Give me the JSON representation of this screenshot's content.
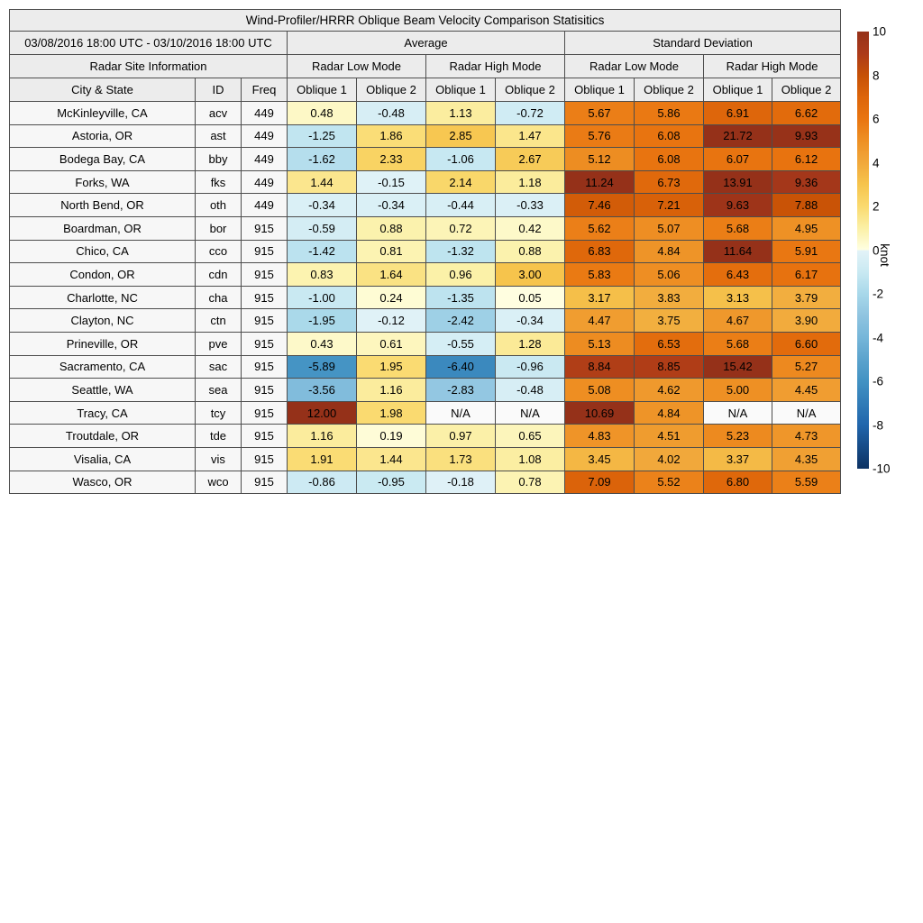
{
  "chart_data": {
    "type": "heatmap",
    "title": "Wind-Profiler/HRRR Oblique Beam Velocity Comparison Statisitics",
    "date_range": "03/08/2016 18:00 UTC - 03/10/2016 18:00 UTC",
    "site_info_header": "Radar Site Information",
    "stat_groups": [
      "Average",
      "Standard Deviation"
    ],
    "mode_headers": [
      "Radar Low Mode",
      "Radar High Mode",
      "Radar Low Mode",
      "Radar High Mode"
    ],
    "site_columns": [
      "City & State",
      "ID",
      "Freq"
    ],
    "oblique_headers": [
      "Oblique 1",
      "Oblique 2",
      "Oblique 1",
      "Oblique 2",
      "Oblique 1",
      "Oblique 2",
      "Oblique 1",
      "Oblique 2"
    ],
    "na_text": "N/A",
    "rows": [
      {
        "city": "McKinleyville, CA",
        "id": "acv",
        "freq": "449",
        "values": [
          0.48,
          -0.48,
          1.13,
          -0.72,
          5.67,
          5.86,
          6.91,
          6.62
        ]
      },
      {
        "city": "Astoria, OR",
        "id": "ast",
        "freq": "449",
        "values": [
          -1.25,
          1.86,
          2.85,
          1.47,
          5.76,
          6.08,
          21.72,
          9.93
        ]
      },
      {
        "city": "Bodega Bay, CA",
        "id": "bby",
        "freq": "449",
        "values": [
          -1.62,
          2.33,
          -1.06,
          2.67,
          5.12,
          6.08,
          6.07,
          6.12
        ]
      },
      {
        "city": "Forks, WA",
        "id": "fks",
        "freq": "449",
        "values": [
          1.44,
          -0.15,
          2.14,
          1.18,
          11.24,
          6.73,
          13.91,
          9.36
        ]
      },
      {
        "city": "North Bend, OR",
        "id": "oth",
        "freq": "449",
        "values": [
          -0.34,
          -0.34,
          -0.44,
          -0.33,
          7.46,
          7.21,
          9.63,
          7.88
        ]
      },
      {
        "city": "Boardman, OR",
        "id": "bor",
        "freq": "915",
        "values": [
          -0.59,
          0.88,
          0.72,
          0.42,
          5.62,
          5.07,
          5.68,
          4.95
        ]
      },
      {
        "city": "Chico, CA",
        "id": "cco",
        "freq": "915",
        "values": [
          -1.42,
          0.81,
          -1.32,
          0.88,
          6.83,
          4.84,
          11.64,
          5.91
        ]
      },
      {
        "city": "Condon, OR",
        "id": "cdn",
        "freq": "915",
        "values": [
          0.83,
          1.64,
          0.96,
          3.0,
          5.83,
          5.06,
          6.43,
          6.17
        ]
      },
      {
        "city": "Charlotte, NC",
        "id": "cha",
        "freq": "915",
        "values": [
          -1.0,
          0.24,
          -1.35,
          0.05,
          3.17,
          3.83,
          3.13,
          3.79
        ]
      },
      {
        "city": "Clayton, NC",
        "id": "ctn",
        "freq": "915",
        "values": [
          -1.95,
          -0.12,
          -2.42,
          -0.34,
          4.47,
          3.75,
          4.67,
          3.9
        ]
      },
      {
        "city": "Prineville, OR",
        "id": "pve",
        "freq": "915",
        "values": [
          0.43,
          0.61,
          -0.55,
          1.28,
          5.13,
          6.53,
          5.68,
          6.6
        ]
      },
      {
        "city": "Sacramento, CA",
        "id": "sac",
        "freq": "915",
        "values": [
          -5.89,
          1.95,
          -6.4,
          -0.96,
          8.84,
          8.85,
          15.42,
          5.27
        ]
      },
      {
        "city": "Seattle, WA",
        "id": "sea",
        "freq": "915",
        "values": [
          -3.56,
          1.16,
          -2.83,
          -0.48,
          5.08,
          4.62,
          5.0,
          4.45
        ]
      },
      {
        "city": "Tracy, CA",
        "id": "tcy",
        "freq": "915",
        "values": [
          12.0,
          1.98,
          "N/A",
          "N/A",
          10.69,
          4.84,
          "N/A",
          "N/A"
        ]
      },
      {
        "city": "Troutdale, OR",
        "id": "tde",
        "freq": "915",
        "values": [
          1.16,
          0.19,
          0.97,
          0.65,
          4.83,
          4.51,
          5.23,
          4.73
        ]
      },
      {
        "city": "Visalia, CA",
        "id": "vis",
        "freq": "915",
        "values": [
          1.91,
          1.44,
          1.73,
          1.08,
          3.45,
          4.02,
          3.37,
          4.35
        ]
      },
      {
        "city": "Wasco, OR",
        "id": "wco",
        "freq": "915",
        "values": [
          -0.86,
          -0.95,
          -0.18,
          0.78,
          7.09,
          5.52,
          6.8,
          5.59
        ]
      }
    ],
    "colorbar": {
      "unit_label": "knot",
      "min": -10,
      "max": 10,
      "ticks": [
        10,
        8,
        6,
        4,
        2,
        0,
        -2,
        -4,
        -6,
        -8,
        -10
      ],
      "na_color": "#fafafa",
      "stops": [
        [
          -10,
          "#0C3263"
        ],
        [
          -8,
          "#2166AC"
        ],
        [
          -6,
          "#4292C3"
        ],
        [
          -5,
          "#5BA3CD"
        ],
        [
          -4,
          "#76B6D9"
        ],
        [
          -3,
          "#8FC4E0"
        ],
        [
          -2,
          "#A8D8EA"
        ],
        [
          -1,
          "#C9E9F2"
        ],
        [
          -0.01,
          "#E3F3F8"
        ],
        [
          0.01,
          "#FFFFE2"
        ],
        [
          1,
          "#FBF0A6"
        ],
        [
          2,
          "#FADA6F"
        ],
        [
          3,
          "#F6C44C"
        ],
        [
          4,
          "#F1A83B"
        ],
        [
          5,
          "#EE9024"
        ],
        [
          6,
          "#E97510"
        ],
        [
          7,
          "#DD650A"
        ],
        [
          8,
          "#C65106"
        ],
        [
          9,
          "#AC3A1A"
        ],
        [
          10,
          "#953119"
        ]
      ]
    }
  }
}
